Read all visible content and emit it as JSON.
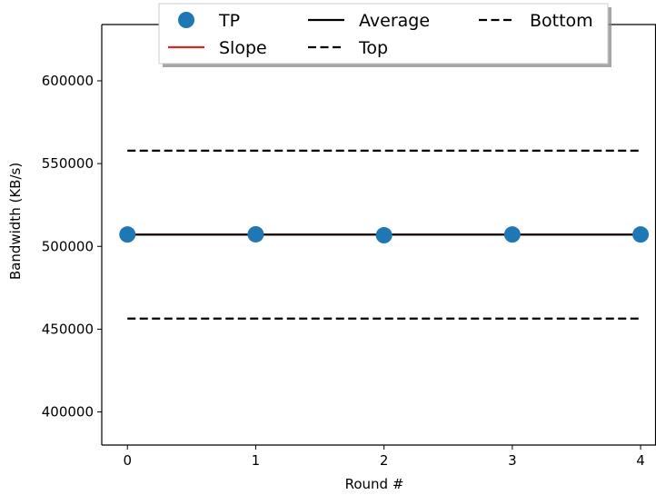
{
  "chart_data": {
    "type": "line",
    "xlabel": "Round #",
    "ylabel": "Bandwidth (KB/s)",
    "xlim": [
      -0.2,
      4.12
    ],
    "ylim": [
      380000,
      634000
    ],
    "x_ticks": [
      0,
      1,
      2,
      3,
      4
    ],
    "x_tick_labels": [
      "0",
      "1",
      "2",
      "3",
      "4"
    ],
    "y_ticks": [
      400000,
      450000,
      500000,
      550000,
      600000
    ],
    "y_tick_labels": [
      "400000",
      "450000",
      "500000",
      "550000",
      "600000"
    ],
    "grid": false,
    "legend_position": "top",
    "series": [
      {
        "name": "TP",
        "kind": "scatter",
        "color": "#1f77b4",
        "x": [
          0,
          1,
          2,
          3,
          4
        ],
        "y": [
          507200,
          507300,
          506700,
          507200,
          507200
        ]
      },
      {
        "name": "Slope",
        "kind": "line",
        "style": "solid",
        "color": "#d62728",
        "x": [
          0,
          4
        ],
        "y": [
          507100,
          507100
        ]
      },
      {
        "name": "Average",
        "kind": "line",
        "style": "solid",
        "color": "#000000",
        "x": [
          0,
          4
        ],
        "y": [
          507100,
          507100
        ]
      },
      {
        "name": "Top",
        "kind": "line",
        "style": "dashed",
        "color": "#000000",
        "x": [
          0,
          4
        ],
        "y": [
          557800,
          557800
        ]
      },
      {
        "name": "Bottom",
        "kind": "line",
        "style": "dashed",
        "color": "#000000",
        "x": [
          0,
          4
        ],
        "y": [
          456400,
          456400
        ]
      }
    ]
  }
}
